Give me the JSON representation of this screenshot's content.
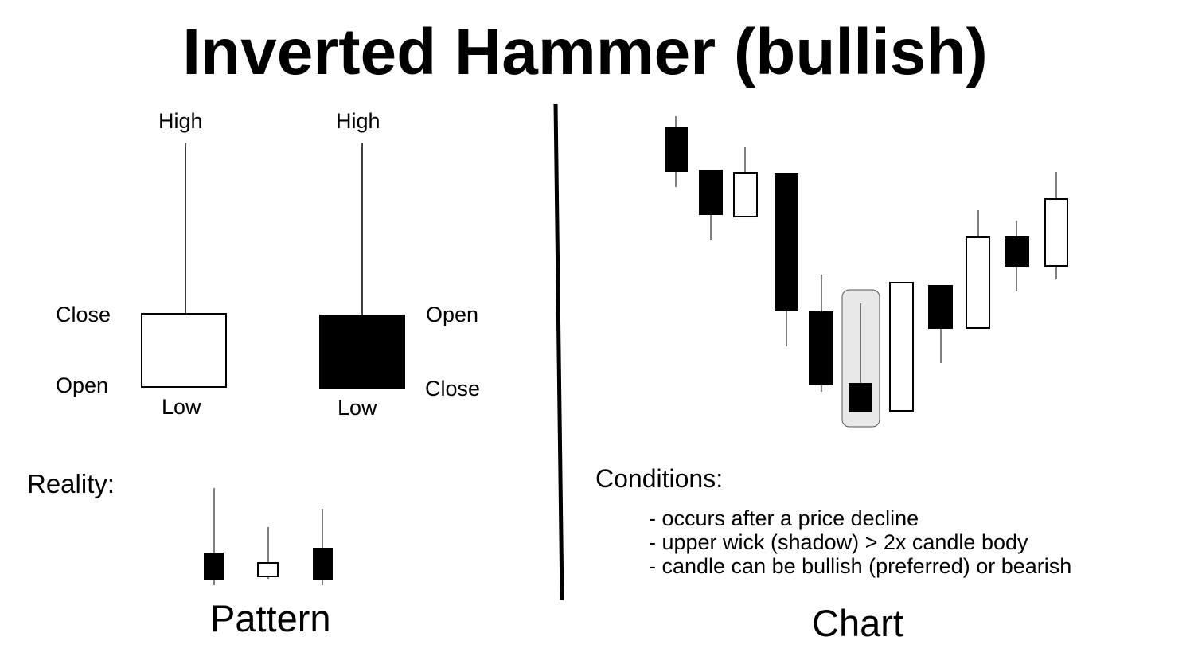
{
  "title": "Inverted Hammer (bullish)",
  "pattern": {
    "bullish_candle": {
      "high_label": "High",
      "close_label": "Close",
      "open_label": "Open",
      "low_label": "Low"
    },
    "bearish_candle": {
      "high_label": "High",
      "open_label": "Open",
      "close_label": "Close",
      "low_label": "Low"
    },
    "reality_label": "Reality:",
    "caption": "Pattern"
  },
  "chart": {
    "conditions_heading": "Conditions:",
    "conditions": [
      "- occurs after a price decline",
      "- upper wick (shadow) > 2x candle body",
      "- candle can be bullish (preferred) or bearish"
    ],
    "caption": "Chart"
  },
  "colors": {
    "bearish_fill": "#000000",
    "bullish_fill": "#ffffff",
    "highlight": "#e8e8e8"
  }
}
